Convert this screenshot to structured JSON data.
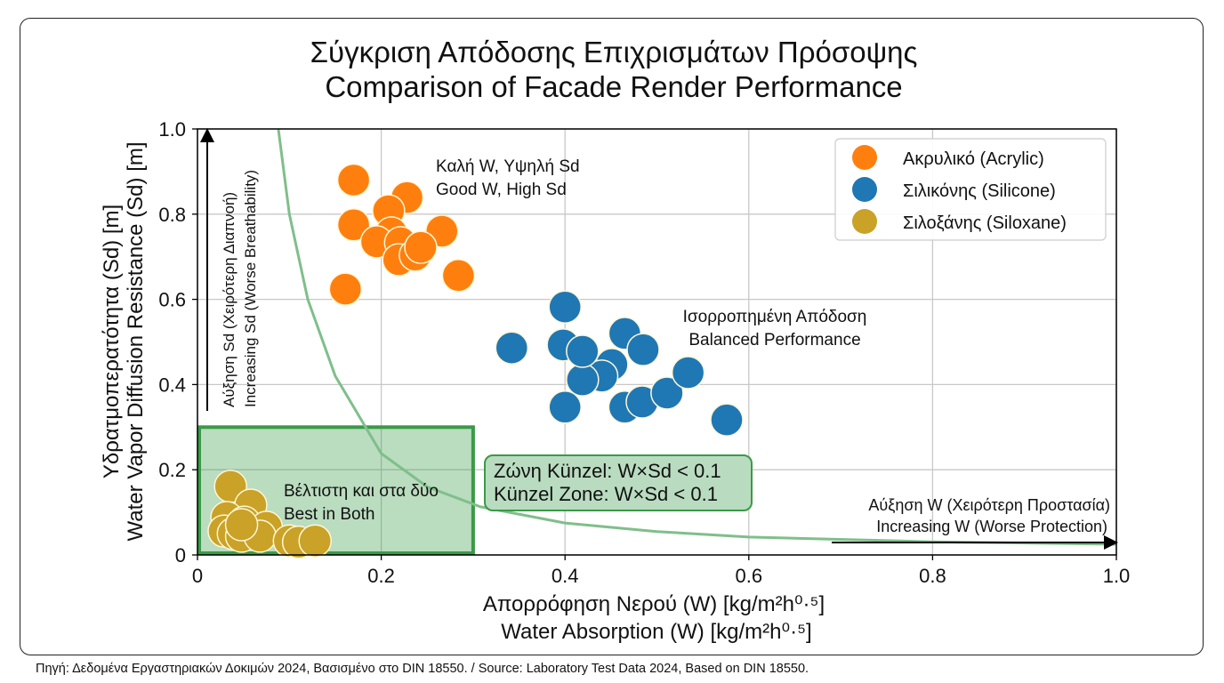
{
  "chart_data": {
    "type": "scatter",
    "title": [
      "Σύγκριση Απόδοσης Επιχρισμάτων Πρόσοψης",
      "Comparison of Facade Render Performance"
    ],
    "xlabel": [
      "Απορρόφηση Νερού (W) [kg/m²h⁰·⁵]",
      "Water Absorption (W) [kg/m²h⁰·⁵]"
    ],
    "ylabel": [
      "Υδρατμοπερατότητα (Sd) [m]",
      "Water Vapor Diffusion Resistance (Sd) [m]"
    ],
    "xlim": [
      0,
      1.0
    ],
    "ylim": [
      0,
      1.0
    ],
    "xticks": [
      0,
      0.2,
      0.4,
      0.6,
      0.8,
      1.0
    ],
    "xtick_labels": [
      "0",
      "0.2",
      "0.4",
      "0.6",
      "0.8",
      "1.0"
    ],
    "yticks": [
      0,
      0.2,
      0.4,
      0.6,
      0.8,
      1.0
    ],
    "ytick_labels": [
      "0",
      "0.2",
      "0.4",
      "0.6",
      "0.8",
      "1.0"
    ],
    "grid": true,
    "legend_position": "top-right",
    "series": [
      {
        "name": "Ακρυλικό (Acrylic)",
        "color": "#ff7f0e",
        "points": [
          [
            0.17,
            0.88
          ],
          [
            0.228,
            0.839
          ],
          [
            0.208,
            0.808
          ],
          [
            0.17,
            0.775
          ],
          [
            0.211,
            0.756
          ],
          [
            0.266,
            0.76
          ],
          [
            0.195,
            0.735
          ],
          [
            0.221,
            0.733
          ],
          [
            0.219,
            0.693
          ],
          [
            0.237,
            0.704
          ],
          [
            0.243,
            0.722
          ],
          [
            0.284,
            0.656
          ],
          [
            0.161,
            0.624
          ]
        ]
      },
      {
        "name": "Σιλικόνης (Silicone)",
        "color": "#1f77b4",
        "points": [
          [
            0.4,
            0.582
          ],
          [
            0.342,
            0.486
          ],
          [
            0.398,
            0.493
          ],
          [
            0.465,
            0.52
          ],
          [
            0.485,
            0.482
          ],
          [
            0.451,
            0.447
          ],
          [
            0.44,
            0.42
          ],
          [
            0.419,
            0.411
          ],
          [
            0.419,
            0.478
          ],
          [
            0.4,
            0.347
          ],
          [
            0.465,
            0.347
          ],
          [
            0.484,
            0.359
          ],
          [
            0.511,
            0.38
          ],
          [
            0.534,
            0.428
          ],
          [
            0.576,
            0.317
          ]
        ]
      },
      {
        "name": "Σιλοξάνης (Siloxane)",
        "color": "#c9a227",
        "points": [
          [
            0.036,
            0.161
          ],
          [
            0.058,
            0.117
          ],
          [
            0.032,
            0.088
          ],
          [
            0.051,
            0.077
          ],
          [
            0.029,
            0.056
          ],
          [
            0.039,
            0.05
          ],
          [
            0.048,
            0.044
          ],
          [
            0.075,
            0.065
          ],
          [
            0.068,
            0.044
          ],
          [
            0.1,
            0.033
          ],
          [
            0.11,
            0.03
          ],
          [
            0.128,
            0.033
          ],
          [
            0.048,
            0.071
          ]
        ]
      }
    ],
    "curve": {
      "color": "#7fbf8a",
      "points": [
        [
          0.088,
          1.0
        ],
        [
          0.1,
          0.8
        ],
        [
          0.12,
          0.6
        ],
        [
          0.15,
          0.42
        ],
        [
          0.2,
          0.238
        ],
        [
          0.25,
          0.16
        ],
        [
          0.308,
          0.113
        ],
        [
          0.4,
          0.075
        ],
        [
          0.5,
          0.055
        ],
        [
          0.6,
          0.042
        ],
        [
          0.8,
          0.031
        ],
        [
          1.0,
          0.025
        ]
      ]
    },
    "zone": {
      "x": [
        0,
        0.3
      ],
      "y": [
        0,
        0.3
      ],
      "color": "#3a9a47"
    },
    "annotations": {
      "acrylic": [
        "Καλή W, Υψηλή Sd",
        "Good W, High Sd"
      ],
      "silicone": [
        "Ισορροπημένη Απόδοση",
        "Balanced Performance"
      ],
      "siloxane": [
        "Βέλτιστη και στα δύο",
        "Best in Both"
      ],
      "kunzel": [
        "Ζώνη Künzel: W×Sd < 0.1",
        "Künzel Zone: W×Sd < 0.1"
      ],
      "x_arrow": [
        "Αύξηση W (Χειρότερη Προστασία)",
        "Increasing W (Worse Protection)"
      ],
      "y_arrow": [
        "Αύξηση Sd (Χειρότερη Διαπνοή)",
        "Increasing Sd (Worse Breathability)"
      ]
    }
  },
  "source": "Πηγή: Δεδομένα Εργαστηριακών Δοκιμών 2024, Βασισμένο στο DIN 18550. / Source: Laboratory Test Data 2024, Based on DIN 18550."
}
